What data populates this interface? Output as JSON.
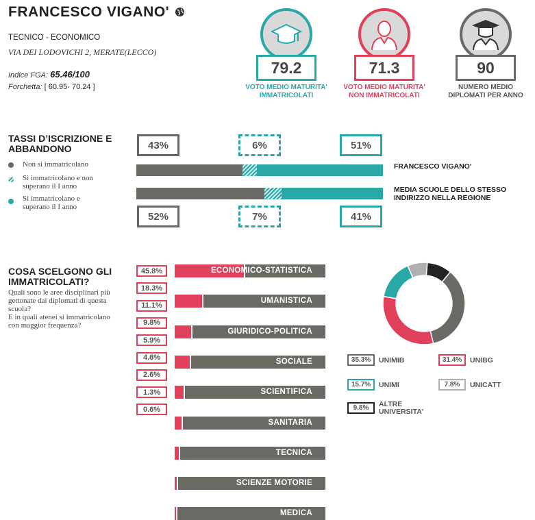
{
  "header": {
    "school_name": "FRANCESCO VIGANO'",
    "school_type": "TECNICO - ECONOMICO",
    "address": "VIA DEI LODOVICHI 2, MERATE(LECCO)",
    "fga_label": "Indice FGA:",
    "fga_value": "65.46/100",
    "fork_label": "Forchetta:",
    "fork_value": "[ 60.95- 70.24 ]"
  },
  "stats": [
    {
      "value": "79.2",
      "label_1": "VOTO MEDIO MATURITA'",
      "label_2": "IMMATRICOLATI",
      "color": "#2aa8a8",
      "icon": "graduation-cap-icon"
    },
    {
      "value": "71.3",
      "label_1": "VOTO MEDIO MATURITA'",
      "label_2": "NON IMMATRICOLATI",
      "color": "#e0405a",
      "icon": "person-icon"
    },
    {
      "value": "90",
      "label_1": "NUMERO MEDIO",
      "label_2": "DIPLOMATI PER ANNO",
      "color": "#6b6963",
      "icon": "graduate-person-icon"
    }
  ],
  "enrollment": {
    "title_1": "TASSI D’ISCRIZIONE E",
    "title_2": "ABBANDONO",
    "legend": [
      {
        "text": "Non si immatricolano",
        "color": "#6b6963"
      },
      {
        "text_1": "Si immatricolano e non",
        "text_2": "superano il I anno",
        "color": "#2aa8a8"
      },
      {
        "text_1": "Si immatricolano e",
        "text_2": "superano il I anno",
        "color": "#2aa8a8"
      }
    ],
    "top_pcts": [
      "43%",
      "6%",
      "51%"
    ],
    "bottom_pcts": [
      "52%",
      "7%",
      "41%"
    ],
    "school_label": "FRANCESCO VIGANO'",
    "region_label_1": "MEDIA SCUOLE DELLO STESSO",
    "region_label_2": "INDIRIZZO NELLA REGIONE",
    "school_values": [
      43,
      6,
      51
    ],
    "region_values": [
      52,
      7,
      41
    ]
  },
  "choices": {
    "title_1": "COSA SCELGONO GLI",
    "title_2": "IMMATRICOLATI?",
    "question_1": "Quali sono le aree disciplinari più",
    "question_2": "gettonate dai diplomati di questa",
    "question_3": "scuola?",
    "question_4": "E in quali atenei si immatricolano",
    "question_5": "con maggior frequenza?",
    "areas": [
      {
        "pct": "45.8%",
        "value": 45.8,
        "label": "ECONOMICO-STATISTICA"
      },
      {
        "pct": "18.3%",
        "value": 18.3,
        "label": "UMANISTICA"
      },
      {
        "pct": "11.1%",
        "value": 11.1,
        "label": "GIURIDICO-POLITICA"
      },
      {
        "pct": "9.8%",
        "value": 9.8,
        "label": "SOCIALE"
      },
      {
        "pct": "5.9%",
        "value": 5.9,
        "label": "SCIENTIFICA"
      },
      {
        "pct": "4.6%",
        "value": 4.6,
        "label": "SANITARIA"
      },
      {
        "pct": "2.6%",
        "value": 2.6,
        "label": "TECNICA"
      },
      {
        "pct": "1.3%",
        "value": 1.3,
        "label": "SCIENZE MOTORIE"
      },
      {
        "pct": "0.6%",
        "value": 0.6,
        "label": "MEDICA"
      }
    ]
  },
  "universities": [
    {
      "pct": "35.3%",
      "value": 35.3,
      "name": "UNIMIB",
      "color": "#6b6963"
    },
    {
      "pct": "31.4%",
      "value": 31.4,
      "name": "UNIBG",
      "color": "#e0405a"
    },
    {
      "pct": "15.7%",
      "value": 15.7,
      "name": "UNIMI",
      "color": "#2aa8a8"
    },
    {
      "pct": "7.8%",
      "value": 7.8,
      "name": "UNICATT",
      "color": "#b0b0b0"
    },
    {
      "pct": "9.8%",
      "value": 9.8,
      "name_1": "ALTRE",
      "name_2": "UNIVERSITA'",
      "color": "#222222"
    }
  ],
  "chart_data": [
    {
      "type": "bar",
      "categories": [
        "FRANCESCO VIGANO'",
        "MEDIA SCUOLE DELLO STESSO INDIRIZZO NELLA REGIONE"
      ],
      "series": [
        {
          "name": "Non si immatricolano",
          "values": [
            43,
            52
          ]
        },
        {
          "name": "Si immatricolano e non superano il I anno",
          "values": [
            6,
            7
          ]
        },
        {
          "name": "Si immatricolano e superano il I anno",
          "values": [
            51,
            41
          ]
        }
      ]
    },
    {
      "type": "bar",
      "categories": [
        "ECONOMICO-STATISTICA",
        "UMANISTICA",
        "GIURIDICO-POLITICA",
        "SOCIALE",
        "SCIENTIFICA",
        "SANITARIA",
        "TECNICA",
        "SCIENZE MOTORIE",
        "MEDICA"
      ],
      "values": [
        45.8,
        18.3,
        11.1,
        9.8,
        5.9,
        4.6,
        2.6,
        1.3,
        0.6
      ]
    },
    {
      "type": "pie",
      "categories": [
        "UNIMIB",
        "UNIBG",
        "UNIMI",
        "UNICATT",
        "ALTRE UNIVERSITA'"
      ],
      "values": [
        35.3,
        31.4,
        15.7,
        7.8,
        9.8
      ]
    }
  ]
}
